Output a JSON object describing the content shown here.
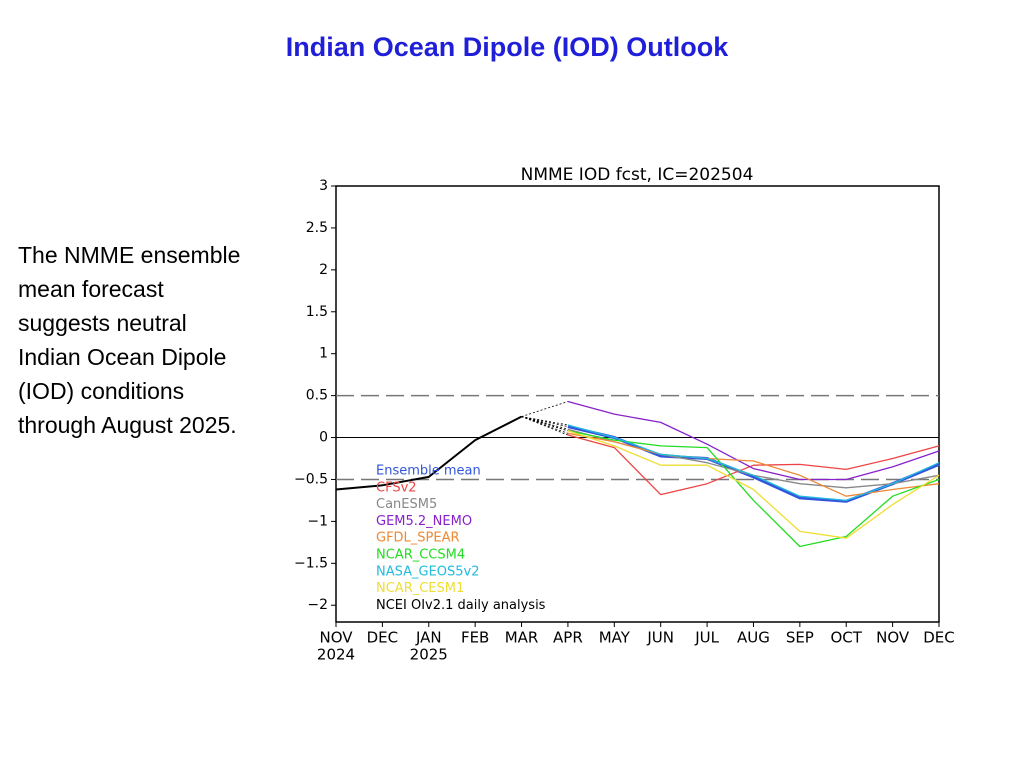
{
  "page_title": "Indian Ocean Dipole (IOD) Outlook",
  "body_lines": [
    "The NMME ensemble",
    "mean forecast",
    "suggests neutral",
    "Indian Ocean Dipole",
    "(IOD) conditions",
    "through August 2025."
  ],
  "chart_data": {
    "type": "line",
    "title": "NMME IOD fcst, IC=202504",
    "categories": [
      "NOV",
      "DEC",
      "JAN",
      "FEB",
      "MAR",
      "APR",
      "MAY",
      "JUN",
      "JUL",
      "AUG",
      "SEP",
      "OCT",
      "NOV",
      "DEC"
    ],
    "category_years": [
      "2024",
      null,
      "2025",
      null,
      null,
      null,
      null,
      null,
      null,
      null,
      null,
      null,
      null,
      null
    ],
    "ylim": [
      -2.2,
      3
    ],
    "yticks": [
      3,
      2.5,
      2,
      1.5,
      1,
      0.5,
      0,
      {
        "value": -0.5,
        "label": "−0.5"
      },
      {
        "value": -1,
        "label": "−1"
      },
      {
        "value": -1.5,
        "label": "−1.5"
      },
      {
        "value": -2,
        "label": "−2"
      }
    ],
    "reference_lines": [
      {
        "value": 0.5,
        "style": "dashed"
      },
      {
        "value": 0,
        "style": "solid"
      },
      {
        "value": -0.5,
        "style": "dashed"
      }
    ],
    "legend": "lower left",
    "series": [
      {
        "name": "Ensemble mean",
        "color": "#3355dd",
        "width": 3,
        "values": [
          null,
          null,
          null,
          null,
          null,
          0.13,
          0.0,
          -0.22,
          -0.25,
          -0.47,
          -0.72,
          -0.76,
          -0.55,
          -0.32
        ]
      },
      {
        "name": "CFSv2",
        "color": "#ee4444",
        "width": 1.3,
        "values": [
          null,
          null,
          null,
          null,
          null,
          0.03,
          -0.12,
          -0.68,
          -0.55,
          -0.33,
          -0.32,
          -0.38,
          -0.25,
          -0.1
        ]
      },
      {
        "name": "CanESM5",
        "color": "#888888",
        "width": 1.3,
        "values": [
          null,
          null,
          null,
          null,
          null,
          0.1,
          -0.05,
          -0.2,
          -0.3,
          -0.45,
          -0.55,
          -0.6,
          -0.55,
          -0.45
        ]
      },
      {
        "name": "GEM5.2_NEMO",
        "color": "#8822cc",
        "width": 1.3,
        "values": [
          null,
          null,
          null,
          null,
          null,
          0.43,
          0.28,
          0.18,
          -0.08,
          -0.37,
          -0.5,
          -0.5,
          -0.35,
          -0.16
        ]
      },
      {
        "name": "GFDL_SPEAR",
        "color": "#ee8833",
        "width": 1.3,
        "values": [
          null,
          null,
          null,
          null,
          null,
          0.05,
          -0.05,
          -0.2,
          -0.25,
          -0.28,
          -0.45,
          -0.7,
          -0.62,
          -0.55
        ]
      },
      {
        "name": "NCAR_CCSM4",
        "color": "#22dd22",
        "width": 1.3,
        "values": [
          null,
          null,
          null,
          null,
          null,
          0.08,
          -0.03,
          -0.1,
          -0.12,
          -0.75,
          -1.3,
          -1.18,
          -0.7,
          -0.5
        ]
      },
      {
        "name": "NASA_GEOS5v2",
        "color": "#22bbdd",
        "width": 1.3,
        "values": [
          null,
          null,
          null,
          null,
          null,
          0.15,
          0.0,
          -0.2,
          -0.25,
          -0.45,
          -0.7,
          -0.75,
          -0.55,
          -0.3
        ]
      },
      {
        "name": "NCAR_CESM1",
        "color": "#eedd33",
        "width": 1.3,
        "values": [
          null,
          null,
          null,
          null,
          null,
          0.08,
          -0.1,
          -0.33,
          -0.33,
          -0.62,
          -1.12,
          -1.2,
          -0.8,
          -0.45
        ]
      },
      {
        "name": "NCEI OIv2.1 daily analysis",
        "color": "#000000",
        "width": 2,
        "values": [
          -0.62,
          -0.57,
          -0.47,
          -0.03,
          0.25,
          null,
          null,
          null,
          null,
          null,
          null,
          null,
          null,
          null
        ]
      }
    ]
  }
}
